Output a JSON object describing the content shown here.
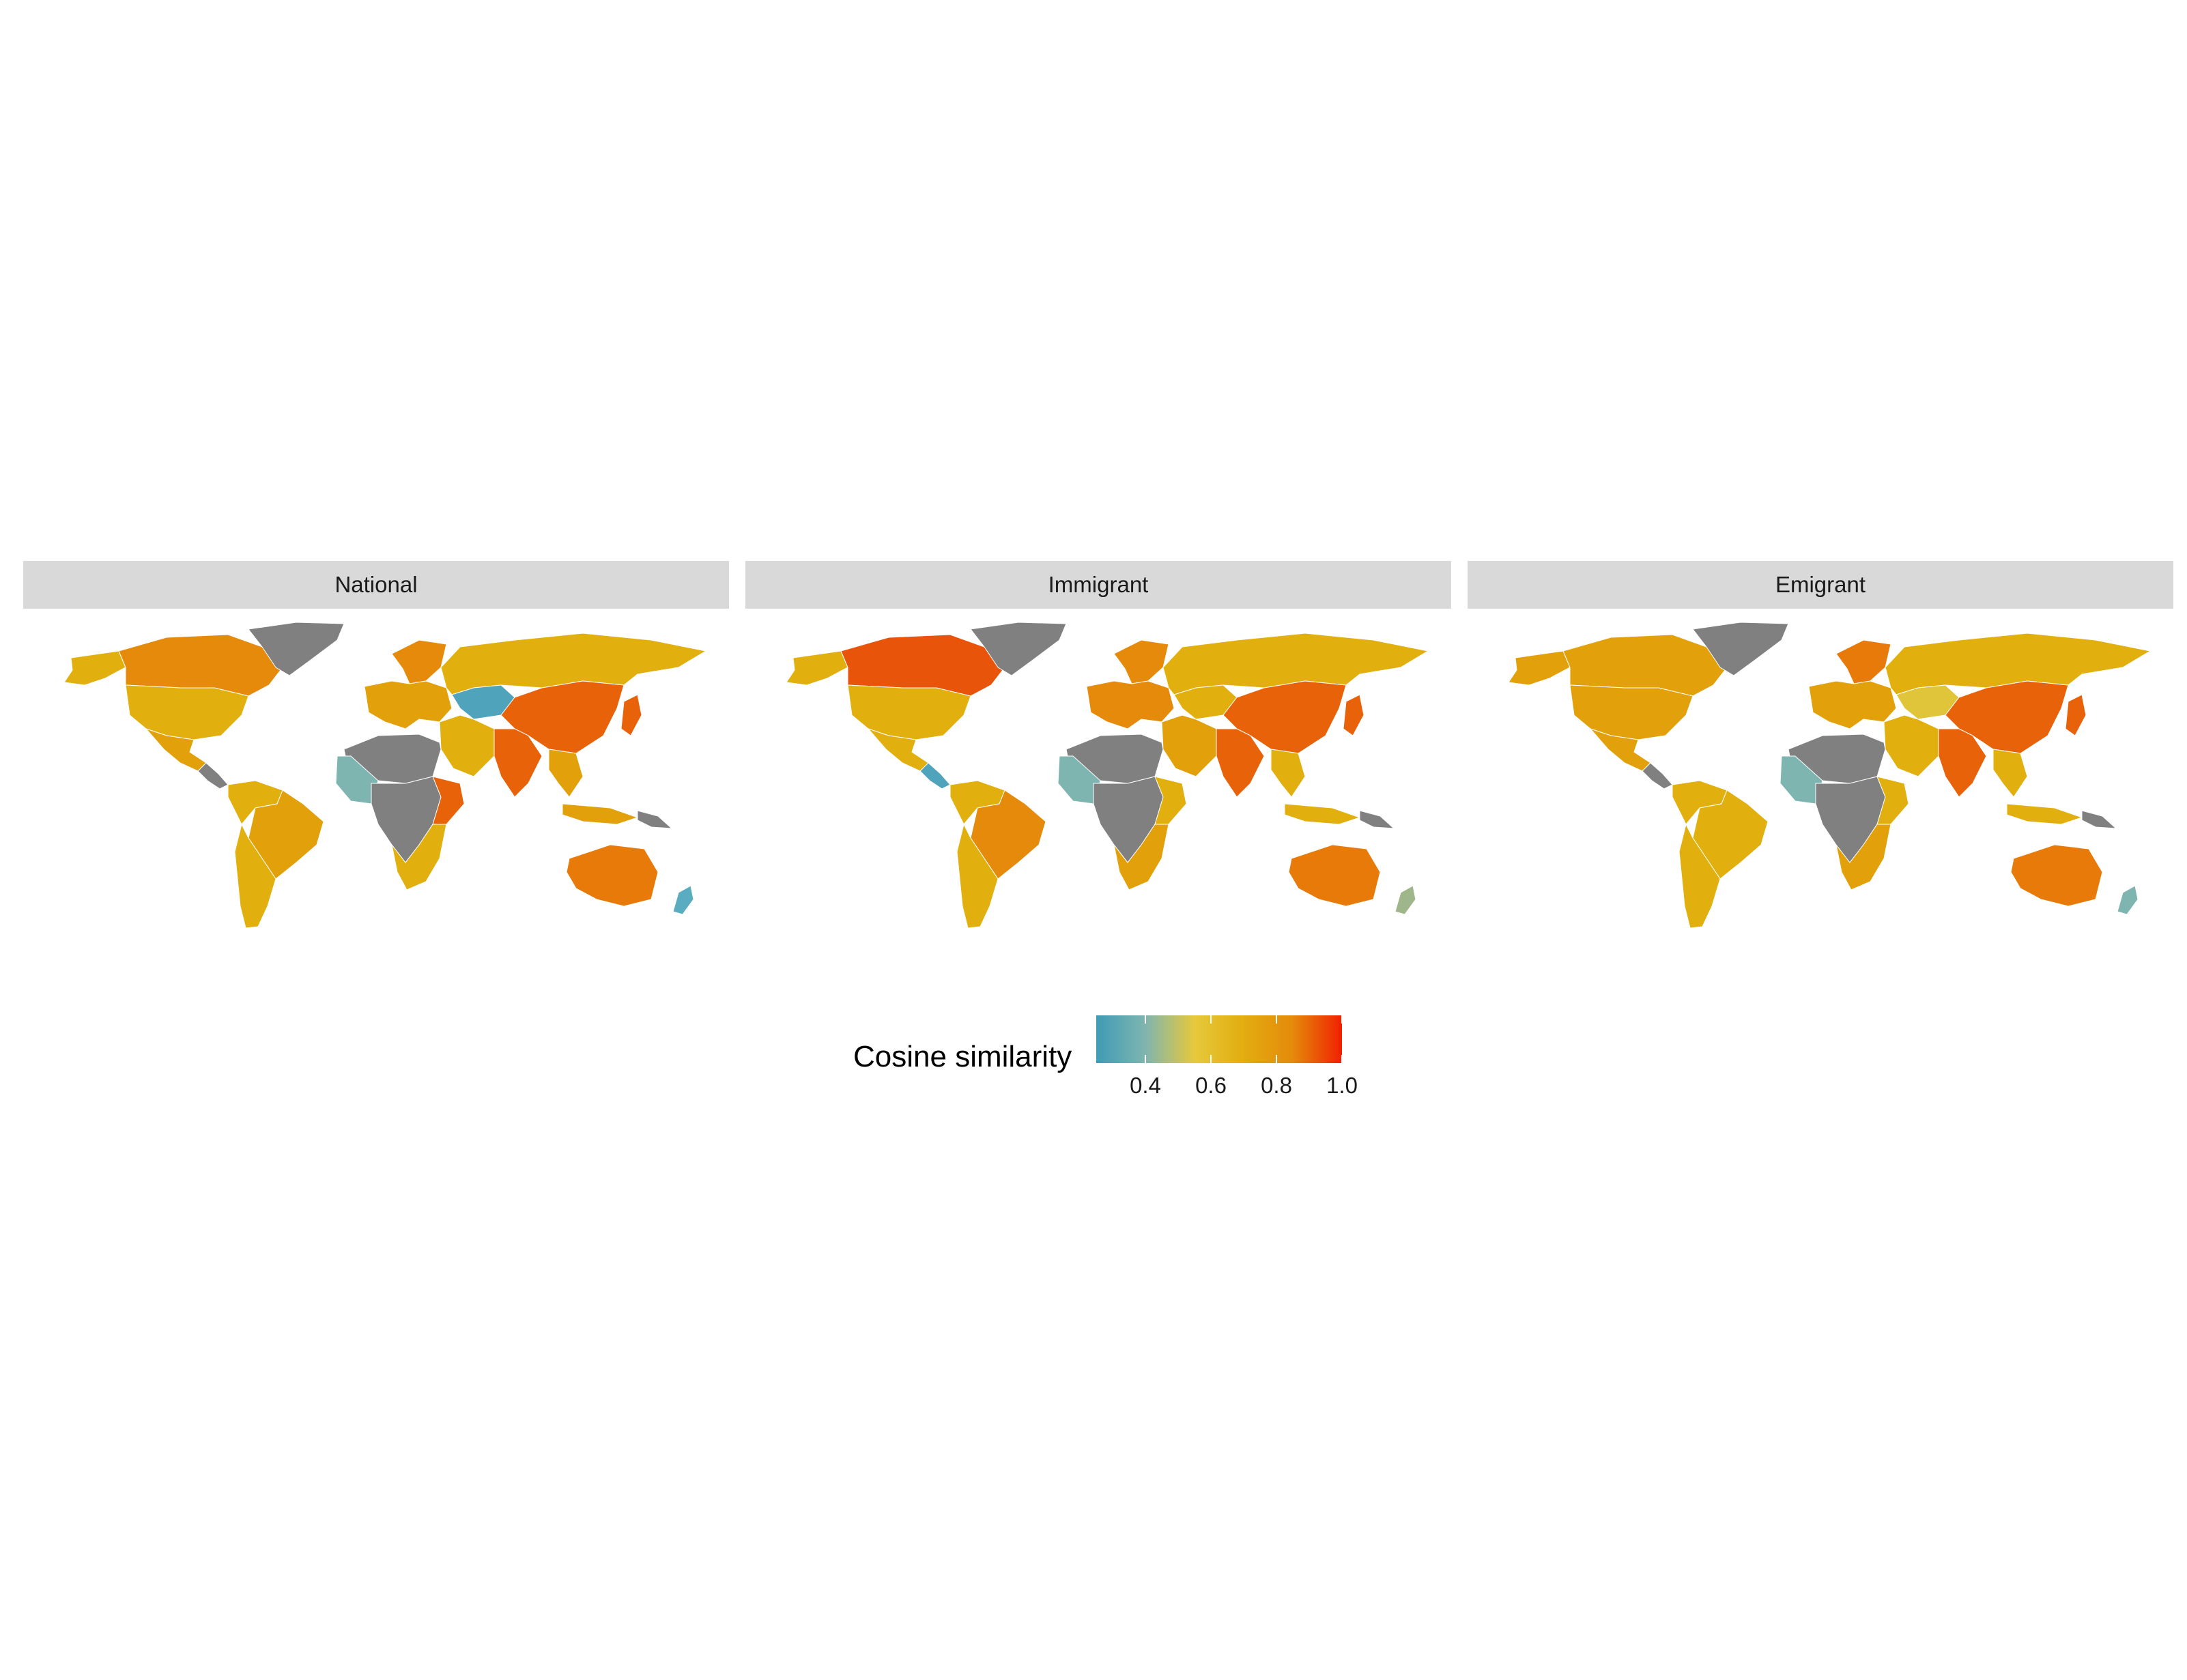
{
  "panels": [
    {
      "title": "National",
      "colors": {
        "canada": "#e58a0a",
        "greenland": "#808080",
        "usa": "#e2b00e",
        "alaska": "#e2b00e",
        "mexico": "#e2a00a",
        "central_am": "#808080",
        "south_am_n": "#e2b00e",
        "brazil": "#e2a00a",
        "argentina": "#e2b00e",
        "europe": "#e2a00a",
        "scandinavia": "#e58a0a",
        "russia": "#e2b00e",
        "kazakh": "#4fa3bb",
        "china": "#e8620a",
        "india": "#e8620a",
        "mideast": "#e2b00e",
        "n_africa": "#808080",
        "w_africa": "#7fb5b0",
        "c_africa": "#808080",
        "e_africa": "#e8620a",
        "s_africa": "#e2b00e",
        "se_asia": "#e2a00a",
        "japan": "#e8620a",
        "australia": "#e87a0a",
        "nz": "#5aacc0",
        "indonesia": "#e2a00a",
        "pacific": "#808080"
      }
    },
    {
      "title": "Immigrant",
      "colors": {
        "canada": "#e8550a",
        "greenland": "#808080",
        "usa": "#e2b00e",
        "alaska": "#e2b00e",
        "mexico": "#e2b00e",
        "central_am": "#4fa3bb",
        "south_am_n": "#e2b00e",
        "brazil": "#e58a0a",
        "argentina": "#e2b00e",
        "europe": "#e58a0a",
        "scandinavia": "#e58a0a",
        "russia": "#e2b00e",
        "kazakh": "#e2b00e",
        "china": "#e8620a",
        "india": "#e8620a",
        "mideast": "#e2a00a",
        "n_africa": "#808080",
        "w_africa": "#7fb5b0",
        "c_africa": "#808080",
        "e_africa": "#e2b00e",
        "s_africa": "#e2a00a",
        "se_asia": "#e2b00e",
        "japan": "#e8620a",
        "australia": "#e87a0a",
        "nz": "#9fb58a",
        "indonesia": "#e2b00e",
        "pacific": "#808080"
      }
    },
    {
      "title": "Emigrant",
      "colors": {
        "canada": "#e2a00a",
        "greenland": "#808080",
        "usa": "#e2a00a",
        "alaska": "#e2a00a",
        "mexico": "#e2a00a",
        "central_am": "#808080",
        "south_am_n": "#e2b00e",
        "brazil": "#e2b00e",
        "argentina": "#e2b00e",
        "europe": "#e2a00a",
        "scandinavia": "#e87a0a",
        "russia": "#e2b00e",
        "kazakh": "#e0c43a",
        "china": "#e8620a",
        "india": "#e8620a",
        "mideast": "#e2b00e",
        "n_africa": "#808080",
        "w_africa": "#7fb5b0",
        "c_africa": "#808080",
        "e_africa": "#e2b00e",
        "s_africa": "#e2a00a",
        "se_asia": "#e2b00e",
        "japan": "#e8620a",
        "australia": "#e87a0a",
        "nz": "#7fb5b0",
        "indonesia": "#e2b00e",
        "pacific": "#808080"
      }
    }
  ],
  "legend": {
    "title": "Cosine similarity",
    "ticks": [
      {
        "value": 0.4,
        "label": "0.4"
      },
      {
        "value": 0.6,
        "label": "0.6"
      },
      {
        "value": 0.8,
        "label": "0.8"
      },
      {
        "value": 1.0,
        "label": "1.0"
      }
    ],
    "range": [
      0.25,
      1.0
    ],
    "gradient": [
      "#3f9bb5",
      "#7fb5b0",
      "#e6c93a",
      "#e2ad10",
      "#e58a0a",
      "#f02000"
    ],
    "missing_color": "#808080"
  }
}
